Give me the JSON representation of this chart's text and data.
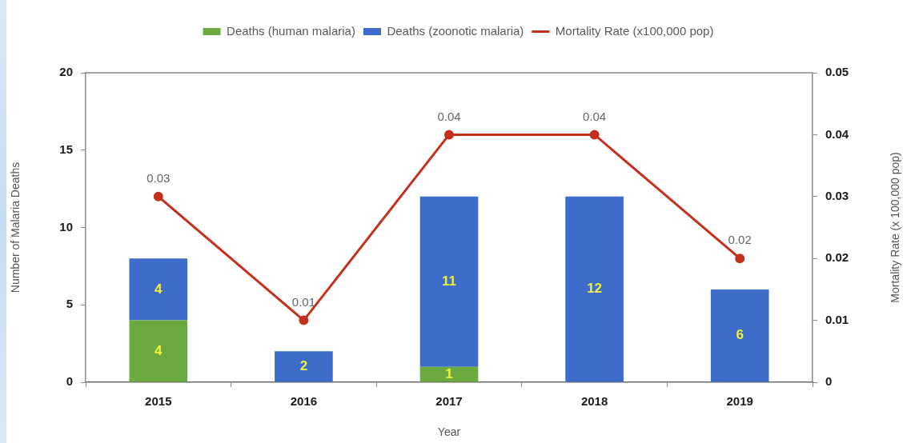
{
  "chart_data": {
    "type": "bar",
    "stacked": true,
    "xlabel": "Year",
    "ylabel": "Number of Malaria Deaths",
    "y2label": "Mortality Rate (x 100,000 pop)",
    "categories": [
      "2015",
      "2016",
      "2017",
      "2018",
      "2019"
    ],
    "series": [
      {
        "name": "Deaths (human malaria)",
        "color": "#6aaa3e",
        "values": [
          4,
          0,
          1,
          0,
          0
        ],
        "value_labels": [
          "4",
          null,
          "1",
          null,
          null
        ]
      },
      {
        "name": "Deaths (zoonotic malaria)",
        "color": "#3e6ccb",
        "values": [
          4,
          2,
          11,
          12,
          6
        ],
        "value_labels": [
          "4",
          "2",
          "11",
          "12",
          "6"
        ]
      },
      {
        "name": "Mortality Rate (x100,000 pop)",
        "type": "line",
        "axis": "y2",
        "color": "#c3301d",
        "values": [
          0.03,
          0.01,
          0.04,
          0.04,
          0.02
        ],
        "value_labels": [
          "0.03",
          "0.01",
          "0.04",
          "0.04",
          "0.02"
        ]
      }
    ],
    "ylim": [
      0,
      20
    ],
    "yticks": [
      0,
      5,
      10,
      15,
      20
    ],
    "y2lim": [
      0,
      0.05
    ],
    "y2ticks": [
      0,
      0.01,
      0.02,
      0.03,
      0.04,
      0.05
    ],
    "legend": "top",
    "marker": "circle",
    "line_style": "solid"
  }
}
